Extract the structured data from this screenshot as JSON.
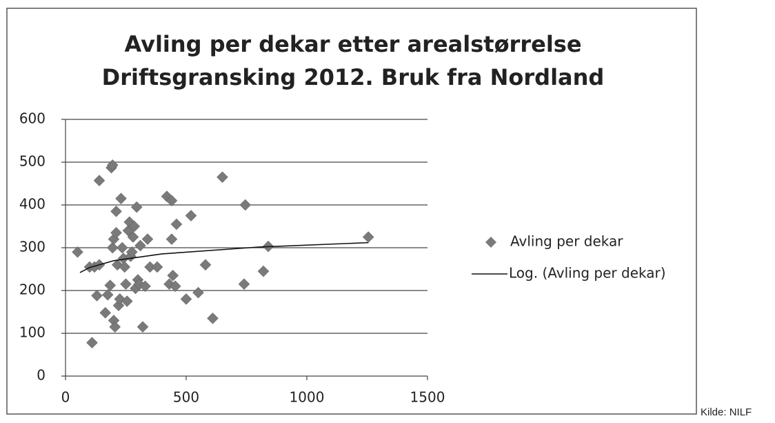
{
  "chart_data": {
    "type": "scatter",
    "title": [
      "Avling per dekar etter arealstørrelse",
      "Driftsgransking 2012. Bruk fra Nordland"
    ],
    "source": "Kilde: NILF",
    "xlim": [
      0,
      1500
    ],
    "xticks": [
      0,
      500,
      1000,
      1500
    ],
    "ylim": [
      0,
      600
    ],
    "yticks": [
      0,
      100,
      200,
      300,
      400,
      500,
      600
    ],
    "grid": true,
    "legend": "right",
    "series": [
      {
        "name": "Avling per dekar",
        "color": "#7a7a7a",
        "x": [
          50,
          100,
          120,
          140,
          110,
          140,
          130,
          165,
          175,
          185,
          195,
          190,
          195,
          200,
          205,
          210,
          200,
          210,
          215,
          220,
          225,
          230,
          235,
          240,
          245,
          250,
          255,
          260,
          265,
          270,
          275,
          280,
          285,
          290,
          295,
          300,
          305,
          310,
          320,
          330,
          340,
          350,
          380,
          420,
          430,
          440,
          440,
          445,
          455,
          460,
          500,
          520,
          550,
          580,
          610,
          650,
          740,
          745,
          820,
          840,
          1255
        ],
        "values": [
          290,
          255,
          255,
          260,
          78,
          457,
          188,
          148,
          190,
          212,
          300,
          487,
          493,
          130,
          115,
          385,
          320,
          335,
          260,
          165,
          180,
          415,
          300,
          275,
          255,
          215,
          175,
          340,
          360,
          280,
          290,
          325,
          350,
          205,
          395,
          225,
          215,
          305,
          115,
          210,
          320,
          255,
          255,
          420,
          215,
          410,
          320,
          235,
          210,
          355,
          180,
          375,
          195,
          260,
          135,
          465,
          215,
          400,
          245,
          303,
          325
        ]
      }
    ],
    "trendline": {
      "name": "Log. (Avling per dekar)",
      "color": "#111111",
      "x": [
        60,
        100,
        200,
        400,
        800,
        1255
      ],
      "values": [
        242,
        253.7,
        269.7,
        285.6,
        301.6,
        311.9
      ]
    }
  }
}
